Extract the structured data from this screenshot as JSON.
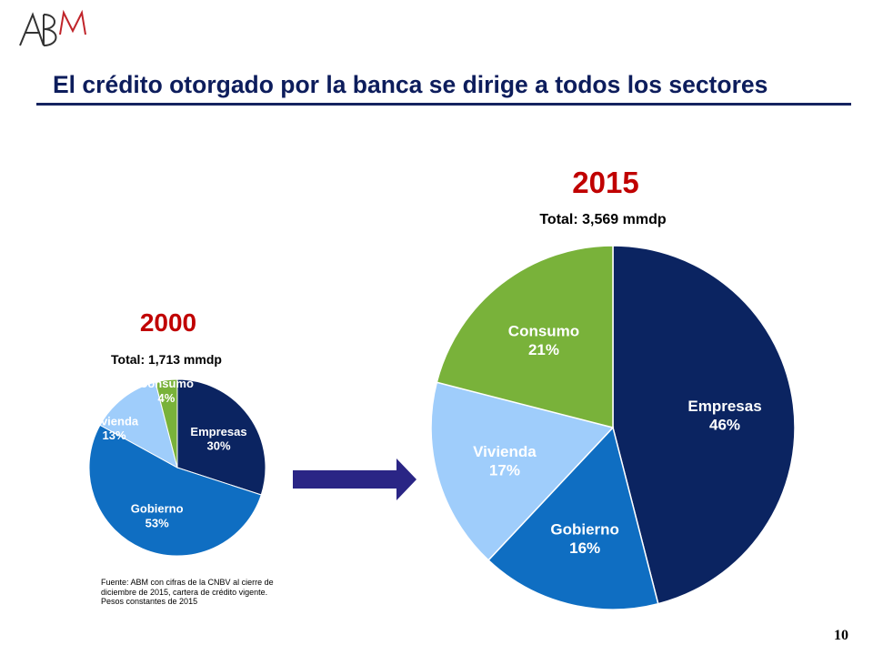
{
  "logo_text": "ABM",
  "title": "El crédito otorgado por la banca se dirige a todos los sectores",
  "source_note": "Fuente: ABM con cifras de la CNBV al cierre de diciembre de 2015, cartera de crédito vigente. Pesos constantes de 2015",
  "page_number": "10",
  "colors": {
    "title": "#0d1d5c",
    "year": "#c00000",
    "empresas": "#0b2461",
    "gobierno": "#0f6ec2",
    "vivienda": "#9fcdfb",
    "consumo": "#79b23a",
    "arrow": "#2a2585",
    "logo_a": "#333333",
    "logo_m": "#c0242a"
  },
  "chart_data": [
    {
      "type": "pie",
      "title": "2000",
      "subtitle": "Total: 1,713 mmdp",
      "slices": [
        {
          "name": "Empresas",
          "value": 30,
          "label": "30%"
        },
        {
          "name": "Gobierno",
          "value": 53,
          "label": "53%"
        },
        {
          "name": "Vivienda",
          "value": 13,
          "label": "13%"
        },
        {
          "name": "Consumo",
          "value": 4,
          "label": "4%"
        }
      ]
    },
    {
      "type": "pie",
      "title": "2015",
      "subtitle": "Total: 3,569 mmdp",
      "slices": [
        {
          "name": "Empresas",
          "value": 46,
          "label": "46%"
        },
        {
          "name": "Gobierno",
          "value": 16,
          "label": "16%"
        },
        {
          "name": "Vivienda",
          "value": 17,
          "label": "17%"
        },
        {
          "name": "Consumo",
          "value": 21,
          "label": "21%"
        }
      ]
    }
  ]
}
